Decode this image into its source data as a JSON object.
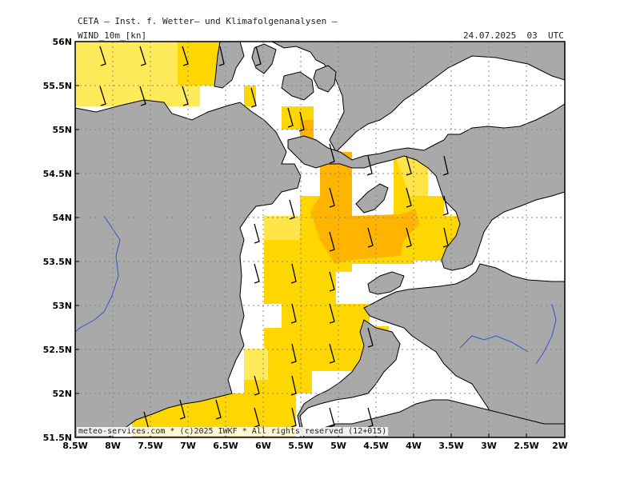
{
  "header": {
    "institute": "CETA — Inst. f. Wetter— und Klimafolgenanalysen —",
    "parameter": "WIND_10m_[kn]",
    "datetime": "24.07.2025  03  UTC"
  },
  "footer": {
    "credit": "meteo-services.com * (c)2025 IWKF * All rights reserved (12+015)"
  },
  "axes": {
    "lat_ticks": [
      "56N",
      "55.5N",
      "55N",
      "54.5N",
      "54N",
      "53.5N",
      "53N",
      "52.5N",
      "52N",
      "51.5N"
    ],
    "lon_ticks": [
      "8.5W",
      "8W",
      "7.5W",
      "7W",
      "6.5W",
      "6W",
      "5.5W",
      "5W",
      "4.5W",
      "4W",
      "3.5W",
      "3W",
      "2.5W",
      "2W"
    ]
  },
  "colors": {
    "land": "#a9a9a9",
    "sea": "#ffffff",
    "light_yellow": "#ffeb5a",
    "yellow": "#ffd700",
    "orange": "#ffb400",
    "coast": "#000000",
    "river": "#3355cc",
    "grid": "#888888"
  },
  "legend_note": "wind barbs over sea, shading by wind speed class"
}
